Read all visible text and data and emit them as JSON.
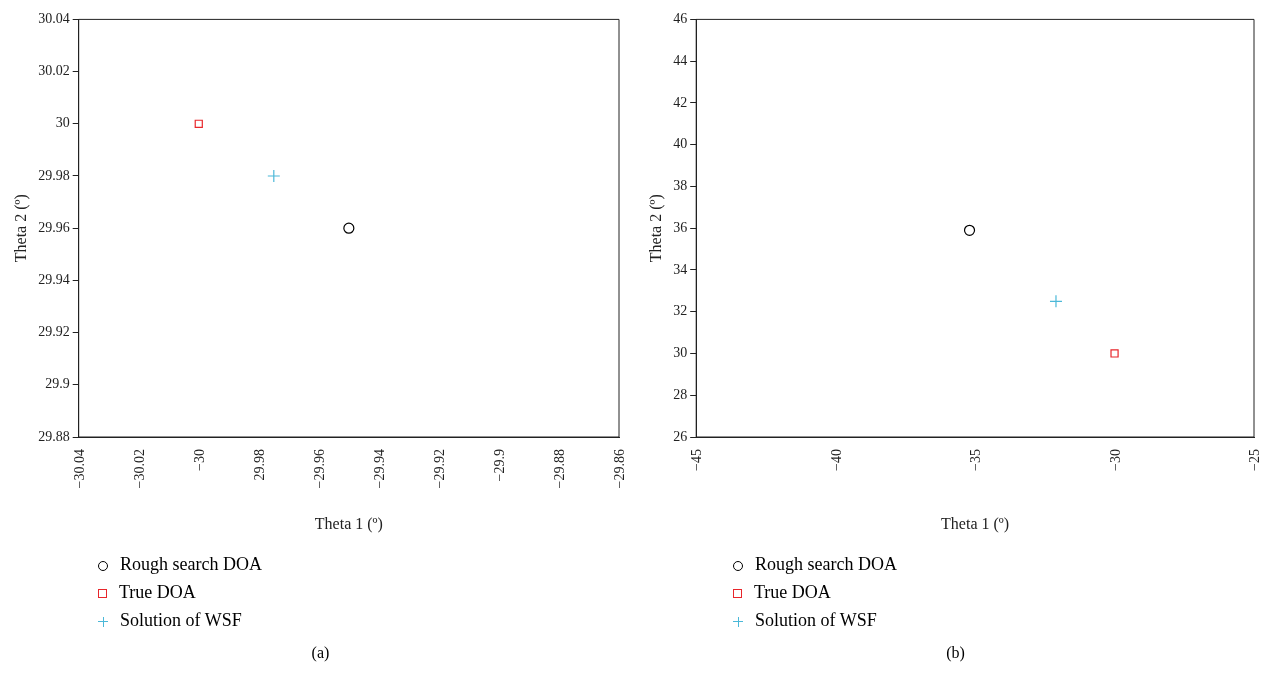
{
  "chart_data": [
    {
      "type": "scatter",
      "xlabel": "Theta 1 (º)",
      "ylabel": "Theta 2 (º)",
      "xlim": [
        -30.04,
        -29.86
      ],
      "ylim": [
        29.88,
        30.04
      ],
      "xticks": [
        -30.04,
        -30.02,
        -30,
        {
          "value": -29.98,
          "label": "29.98"
        },
        -29.96,
        -29.94,
        -29.92,
        -29.9,
        -29.88,
        -29.86
      ],
      "yticks": [
        29.88,
        29.9,
        29.92,
        29.94,
        29.96,
        29.98,
        30,
        30.02,
        30.04
      ],
      "grid": false,
      "legend": "bottom",
      "annotations": [
        "(a)"
      ],
      "series": [
        {
          "name": "Rough search DOA",
          "color": "#000000",
          "marker": "circle",
          "x": [
            -29.95
          ],
          "values": [
            29.96
          ]
        },
        {
          "name": "True DOA",
          "color": "#e8262b",
          "marker": "square",
          "x": [
            -30
          ],
          "values": [
            30
          ]
        },
        {
          "name": "Solution of WSF",
          "color": "#4bb8d8",
          "marker": "cross",
          "x": [
            -29.975
          ],
          "values": [
            29.98
          ]
        }
      ]
    },
    {
      "type": "scatter",
      "xlabel": "Theta 1 (º)",
      "ylabel": "Theta 2 (º)",
      "xlim": [
        -45,
        -25
      ],
      "ylim": [
        26,
        46
      ],
      "xticks": [
        -45,
        -40,
        -35,
        -30,
        -25
      ],
      "yticks": [
        26,
        28,
        30,
        32,
        34,
        36,
        38,
        40,
        42,
        44,
        46
      ],
      "grid": false,
      "legend": "bottom",
      "annotations": [
        "(b)"
      ],
      "series": [
        {
          "name": "Rough search DOA",
          "color": "#000000",
          "marker": "circle",
          "x": [
            -35.2
          ],
          "values": [
            35.9
          ]
        },
        {
          "name": "True DOA",
          "color": "#e8262b",
          "marker": "square",
          "x": [
            -30
          ],
          "values": [
            30
          ]
        },
        {
          "name": "Solution of WSF",
          "color": "#4bb8d8",
          "marker": "cross",
          "x": [
            -32.1
          ],
          "values": [
            32.5
          ]
        }
      ]
    }
  ]
}
